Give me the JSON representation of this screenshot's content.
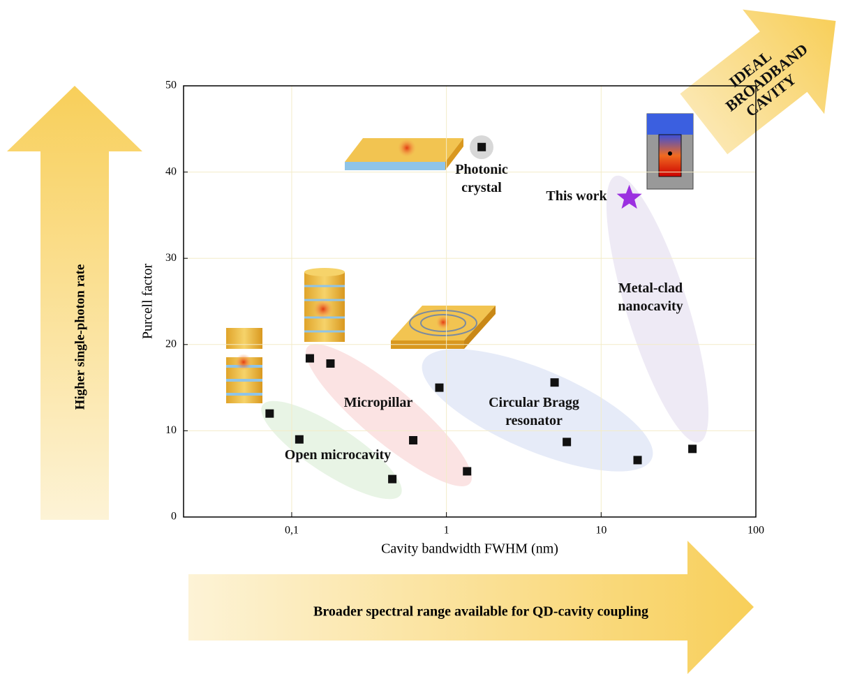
{
  "chart_data": {
    "type": "scatter",
    "x_label": "Cavity bandwidth FWHM (nm)",
    "y_label": "Purcell factor",
    "x_log": true,
    "xlim": [
      0.02,
      100
    ],
    "xticks": [
      {
        "value": 0.1,
        "label": "0,1"
      },
      1,
      10,
      100
    ],
    "ylim": [
      0,
      50
    ],
    "yticks": [
      0,
      10,
      20,
      30,
      40,
      50
    ],
    "grid": true,
    "series": [
      {
        "name": "Open microcavity",
        "color": "#111111",
        "marker": "square",
        "x": [
          0.072,
          0.112,
          0.447
        ],
        "values": [
          12,
          9,
          4.4
        ]
      },
      {
        "name": "Micropillar",
        "color": "#111111",
        "marker": "square",
        "x": [
          0.131,
          0.178,
          0.61,
          1.36
        ],
        "values": [
          18.4,
          17.8,
          8.9,
          5.3
        ]
      },
      {
        "name": "Circular Bragg resonator",
        "color": "#111111",
        "marker": "square",
        "x": [
          0.9,
          5.0,
          6.0,
          17.2
        ],
        "values": [
          15,
          15.6,
          8.7,
          6.6
        ]
      },
      {
        "name": "Metal-clad nanocavity",
        "color": "#111111",
        "marker": "square",
        "x": [
          38.9
        ],
        "values": [
          7.9
        ]
      },
      {
        "name": "Photonic crystal",
        "color": "#111111",
        "marker": "square",
        "x": [
          1.69
        ],
        "values": [
          42.9
        ]
      },
      {
        "name": "This work",
        "color": "#9b30e0",
        "marker": "star",
        "x": [
          15.2
        ],
        "values": [
          37
        ]
      }
    ],
    "arrow_labels": {
      "vertical": "Higher single-photon rate",
      "horizontal": "Broader spectral range available for QD-cavity coupling",
      "diagonal": "IDEAL BROADBAND CAVITY"
    }
  }
}
